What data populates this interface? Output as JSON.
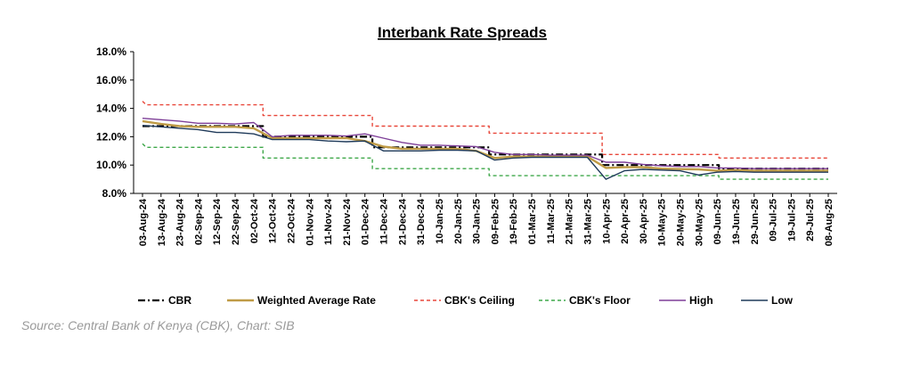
{
  "chart_data": {
    "type": "line",
    "title": "Interbank Rate Spreads",
    "ylim": [
      8.0,
      18.0
    ],
    "y_ticks": [
      "18.0%",
      "16.0%",
      "14.0%",
      "12.0%",
      "10.0%",
      "8.0%"
    ],
    "y_tick_values": [
      18,
      16,
      14,
      12,
      10,
      8
    ],
    "x_tick_labels": [
      "03-Aug-24",
      "13-Aug-24",
      "23-Aug-24",
      "02-Sep-24",
      "12-Sep-24",
      "22-Sep-24",
      "02-Oct-24",
      "12-Oct-24",
      "22-Oct-24",
      "01-Nov-24",
      "11-Nov-24",
      "21-Nov-24",
      "01-Dec-24",
      "11-Dec-24",
      "21-Dec-24",
      "31-Dec-24",
      "10-Jan-25",
      "20-Jan-25",
      "30-Jan-25",
      "09-Feb-25",
      "19-Feb-25",
      "01-Mar-25",
      "11-Mar-25",
      "21-Mar-25",
      "31-Mar-25",
      "10-Apr-25",
      "20-Apr-25",
      "30-Apr-25",
      "10-May-25",
      "20-May-25",
      "30-May-25",
      "09-Jun-25",
      "19-Jun-25",
      "29-Jun-25",
      "09-Jul-25",
      "19-Jul-25",
      "29-Jul-25",
      "08-Aug-25"
    ],
    "grid": false,
    "legend_position": "bottom",
    "series": [
      {
        "name": "CBR",
        "color": "#000000",
        "style": "dash-dot",
        "points": [
          [
            "03-Aug-24",
            12.75
          ],
          [
            "07-Oct-24",
            12.75
          ],
          [
            "07-Oct-24",
            12.0
          ],
          [
            "05-Dec-24",
            12.0
          ],
          [
            "05-Dec-24",
            11.25
          ],
          [
            "06-Feb-25",
            11.25
          ],
          [
            "06-Feb-25",
            10.75
          ],
          [
            "08-Apr-25",
            10.75
          ],
          [
            "08-Apr-25",
            10.0
          ],
          [
            "10-Jun-25",
            10.0
          ],
          [
            "10-Jun-25",
            9.75
          ],
          [
            "08-Aug-25",
            9.75
          ]
        ]
      },
      {
        "name": "Weighted Average Rate",
        "color": "#bf9b46",
        "style": "solid",
        "points": [
          [
            "03-Aug-24",
            13.1
          ],
          [
            "13-Aug-24",
            12.9
          ],
          [
            "23-Aug-24",
            12.75
          ],
          [
            "02-Sep-24",
            12.7
          ],
          [
            "12-Sep-24",
            12.7
          ],
          [
            "22-Sep-24",
            12.7
          ],
          [
            "02-Oct-24",
            12.6
          ],
          [
            "12-Oct-24",
            11.9
          ],
          [
            "22-Oct-24",
            11.9
          ],
          [
            "01-Nov-24",
            11.9
          ],
          [
            "11-Nov-24",
            11.9
          ],
          [
            "21-Nov-24",
            11.9
          ],
          [
            "01-Dec-24",
            11.7
          ],
          [
            "11-Dec-24",
            11.3
          ],
          [
            "21-Dec-24",
            11.15
          ],
          [
            "31-Dec-24",
            11.15
          ],
          [
            "10-Jan-25",
            11.15
          ],
          [
            "20-Jan-25",
            11.15
          ],
          [
            "30-Jan-25",
            11.0
          ],
          [
            "09-Feb-25",
            10.5
          ],
          [
            "19-Feb-25",
            10.6
          ],
          [
            "01-Mar-25",
            10.6
          ],
          [
            "11-Mar-25",
            10.6
          ],
          [
            "21-Mar-25",
            10.6
          ],
          [
            "31-Mar-25",
            10.6
          ],
          [
            "10-Apr-25",
            9.8
          ],
          [
            "20-Apr-25",
            9.85
          ],
          [
            "30-Apr-25",
            9.85
          ],
          [
            "10-May-25",
            9.75
          ],
          [
            "20-May-25",
            9.72
          ],
          [
            "30-May-25",
            9.7
          ],
          [
            "09-Jun-25",
            9.6
          ],
          [
            "19-Jun-25",
            9.65
          ],
          [
            "29-Jun-25",
            9.6
          ],
          [
            "09-Jul-25",
            9.6
          ],
          [
            "19-Jul-25",
            9.6
          ],
          [
            "29-Jul-25",
            9.6
          ],
          [
            "08-Aug-25",
            9.6
          ]
        ]
      },
      {
        "name": "CBK's Ceiling",
        "color": "#e8473a",
        "style": "dashed",
        "points": [
          [
            "03-Aug-24",
            14.5
          ],
          [
            "05-Aug-24",
            14.25
          ],
          [
            "07-Oct-24",
            14.25
          ],
          [
            "07-Oct-24",
            13.5
          ],
          [
            "05-Dec-24",
            13.5
          ],
          [
            "05-Dec-24",
            12.75
          ],
          [
            "06-Feb-25",
            12.75
          ],
          [
            "06-Feb-25",
            12.25
          ],
          [
            "08-Apr-25",
            12.25
          ],
          [
            "08-Apr-25",
            10.75
          ],
          [
            "10-Jun-25",
            10.75
          ],
          [
            "10-Jun-25",
            10.5
          ],
          [
            "08-Aug-25",
            10.5
          ]
        ]
      },
      {
        "name": "CBK's Floor",
        "color": "#3fa84a",
        "style": "dashed",
        "points": [
          [
            "03-Aug-24",
            11.5
          ],
          [
            "05-Aug-24",
            11.25
          ],
          [
            "07-Oct-24",
            11.25
          ],
          [
            "07-Oct-24",
            10.5
          ],
          [
            "05-Dec-24",
            10.5
          ],
          [
            "05-Dec-24",
            9.75
          ],
          [
            "06-Feb-25",
            9.75
          ],
          [
            "06-Feb-25",
            9.25
          ],
          [
            "08-Apr-25",
            9.25
          ],
          [
            "08-Apr-25",
            9.25
          ],
          [
            "10-Jun-25",
            9.25
          ],
          [
            "10-Jun-25",
            9.0
          ],
          [
            "08-Aug-25",
            9.0
          ]
        ]
      },
      {
        "name": "High",
        "color": "#7e3f98",
        "style": "solid",
        "points": [
          [
            "03-Aug-24",
            13.3
          ],
          [
            "13-Aug-24",
            13.2
          ],
          [
            "23-Aug-24",
            13.1
          ],
          [
            "02-Sep-24",
            12.95
          ],
          [
            "12-Sep-24",
            12.95
          ],
          [
            "22-Sep-24",
            12.9
          ],
          [
            "02-Oct-24",
            13.0
          ],
          [
            "12-Oct-24",
            12.0
          ],
          [
            "22-Oct-24",
            12.1
          ],
          [
            "01-Nov-24",
            12.1
          ],
          [
            "11-Nov-24",
            12.1
          ],
          [
            "21-Nov-24",
            12.05
          ],
          [
            "01-Dec-24",
            12.2
          ],
          [
            "11-Dec-24",
            11.9
          ],
          [
            "21-Dec-24",
            11.6
          ],
          [
            "31-Dec-24",
            11.4
          ],
          [
            "10-Jan-25",
            11.4
          ],
          [
            "20-Jan-25",
            11.35
          ],
          [
            "30-Jan-25",
            11.3
          ],
          [
            "09-Feb-25",
            10.9
          ],
          [
            "19-Feb-25",
            10.75
          ],
          [
            "01-Mar-25",
            10.75
          ],
          [
            "11-Mar-25",
            10.7
          ],
          [
            "21-Mar-25",
            10.7
          ],
          [
            "31-Mar-25",
            10.7
          ],
          [
            "10-Apr-25",
            10.2
          ],
          [
            "20-Apr-25",
            10.2
          ],
          [
            "30-Apr-25",
            10.05
          ],
          [
            "10-May-25",
            9.95
          ],
          [
            "20-May-25",
            9.9
          ],
          [
            "30-May-25",
            9.9
          ],
          [
            "09-Jun-25",
            9.8
          ],
          [
            "19-Jun-25",
            9.8
          ],
          [
            "29-Jun-25",
            9.75
          ],
          [
            "09-Jul-25",
            9.75
          ],
          [
            "19-Jul-25",
            9.75
          ],
          [
            "29-Jul-25",
            9.75
          ],
          [
            "08-Aug-25",
            9.75
          ]
        ]
      },
      {
        "name": "Low",
        "color": "#1f3a5a",
        "style": "solid",
        "points": [
          [
            "03-Aug-24",
            12.8
          ],
          [
            "13-Aug-24",
            12.7
          ],
          [
            "23-Aug-24",
            12.6
          ],
          [
            "02-Sep-24",
            12.5
          ],
          [
            "12-Sep-24",
            12.3
          ],
          [
            "22-Sep-24",
            12.3
          ],
          [
            "02-Oct-24",
            12.2
          ],
          [
            "12-Oct-24",
            11.8
          ],
          [
            "22-Oct-24",
            11.8
          ],
          [
            "01-Nov-24",
            11.8
          ],
          [
            "11-Nov-24",
            11.7
          ],
          [
            "21-Nov-24",
            11.65
          ],
          [
            "01-Dec-24",
            11.7
          ],
          [
            "11-Dec-24",
            11.0
          ],
          [
            "21-Dec-24",
            11.0
          ],
          [
            "31-Dec-24",
            11.0
          ],
          [
            "10-Jan-25",
            11.05
          ],
          [
            "20-Jan-25",
            11.05
          ],
          [
            "30-Jan-25",
            11.0
          ],
          [
            "09-Feb-25",
            10.35
          ],
          [
            "19-Feb-25",
            10.5
          ],
          [
            "01-Mar-25",
            10.55
          ],
          [
            "11-Mar-25",
            10.55
          ],
          [
            "21-Mar-25",
            10.55
          ],
          [
            "31-Mar-25",
            10.55
          ],
          [
            "10-Apr-25",
            9.0
          ],
          [
            "20-Apr-25",
            9.6
          ],
          [
            "30-Apr-25",
            9.7
          ],
          [
            "10-May-25",
            9.65
          ],
          [
            "20-May-25",
            9.6
          ],
          [
            "30-May-25",
            9.3
          ],
          [
            "09-Jun-25",
            9.5
          ],
          [
            "19-Jun-25",
            9.55
          ],
          [
            "29-Jun-25",
            9.5
          ],
          [
            "09-Jul-25",
            9.5
          ],
          [
            "19-Jul-25",
            9.5
          ],
          [
            "29-Jul-25",
            9.5
          ],
          [
            "08-Aug-25",
            9.5
          ]
        ]
      }
    ]
  },
  "source": "Source: Central Bank of Kenya (CBK), Chart: SIB"
}
